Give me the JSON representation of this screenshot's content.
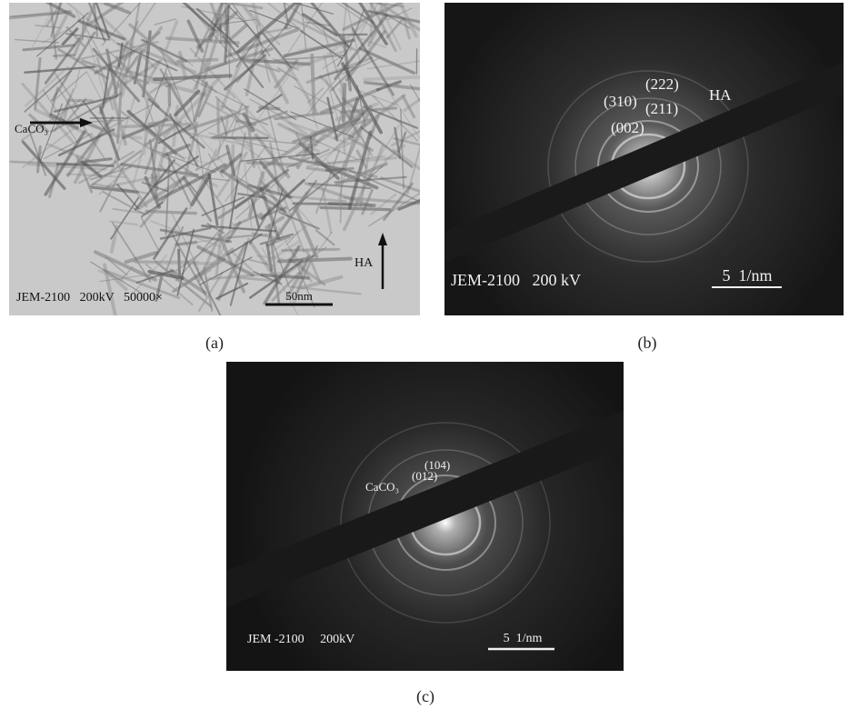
{
  "panels": [
    {
      "caption": "(a)",
      "annotations": [
        "CaCO₃",
        "HA",
        "JEM-2100   200kV   50000×",
        "50nm"
      ]
    },
    {
      "caption": "(b)",
      "annotations": [
        "(222)",
        "(310)",
        "(211)",
        "(002)",
        "HA",
        "JEM-2100   200 kV",
        "5  1/nm"
      ]
    },
    {
      "caption": "(c)",
      "annotations": [
        "(104)",
        "(012)",
        "CaCO₃",
        "JEM -2100     200kV",
        "5  1/nm"
      ]
    }
  ]
}
